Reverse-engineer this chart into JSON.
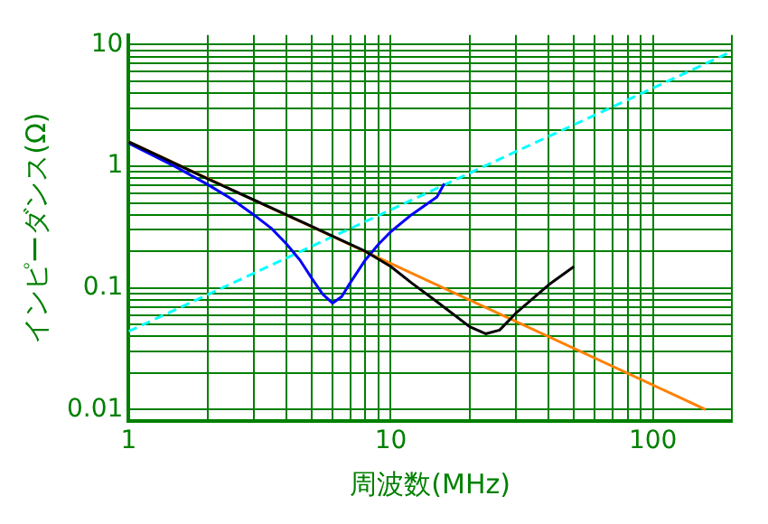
{
  "chart_data": {
    "type": "line",
    "xlabel": "周波数(MHz)",
    "ylabel": "インピーダンス(Ω)",
    "log": "xy",
    "grid": true,
    "legend": false,
    "marker": "none",
    "xlim": [
      1,
      200
    ],
    "ylim": [
      0.008,
      12
    ],
    "xticks": [
      1,
      {
        "value": 2,
        "label": null
      },
      {
        "value": 3,
        "label": null
      },
      {
        "value": 4,
        "label": null
      },
      {
        "value": 5,
        "label": null
      },
      {
        "value": 6,
        "label": null
      },
      {
        "value": 7,
        "label": null
      },
      {
        "value": 8,
        "label": null
      },
      {
        "value": 9,
        "label": null
      },
      10,
      {
        "value": 20,
        "label": null
      },
      {
        "value": 30,
        "label": null
      },
      {
        "value": 40,
        "label": null
      },
      {
        "value": 50,
        "label": null
      },
      {
        "value": 60,
        "label": null
      },
      {
        "value": 70,
        "label": null
      },
      {
        "value": 80,
        "label": null
      },
      {
        "value": 90,
        "label": null
      },
      100,
      {
        "value": 200,
        "label": null
      }
    ],
    "yticks": [
      0.01,
      {
        "value": 0.02,
        "label": null
      },
      {
        "value": 0.03,
        "label": null
      },
      {
        "value": 0.04,
        "label": null
      },
      {
        "value": 0.05,
        "label": null
      },
      {
        "value": 0.06,
        "label": null
      },
      {
        "value": 0.07,
        "label": null
      },
      {
        "value": 0.08,
        "label": null
      },
      {
        "value": 0.09,
        "label": null
      },
      0.1,
      {
        "value": 0.2,
        "label": null
      },
      {
        "value": 0.3,
        "label": null
      },
      {
        "value": 0.4,
        "label": null
      },
      {
        "value": 0.5,
        "label": null
      },
      {
        "value": 0.6,
        "label": null
      },
      {
        "value": 0.7,
        "label": null
      },
      {
        "value": 0.8,
        "label": null
      },
      {
        "value": 0.9,
        "label": null
      },
      1,
      {
        "value": 2,
        "label": null
      },
      {
        "value": 3,
        "label": null
      },
      {
        "value": 4,
        "label": null
      },
      {
        "value": 5,
        "label": null
      },
      {
        "value": 6,
        "label": null
      },
      {
        "value": 7,
        "label": null
      },
      {
        "value": 8,
        "label": null
      },
      {
        "value": 9,
        "label": null
      },
      10
    ],
    "series": [
      {
        "color": "#000000",
        "x": [
          1,
          2,
          5,
          8,
          10,
          12,
          15,
          20,
          23,
          26,
          30,
          40,
          50
        ],
        "values": [
          1.59,
          0.79,
          0.32,
          0.2,
          0.15,
          0.11,
          0.077,
          0.048,
          0.042,
          0.045,
          0.062,
          0.106,
          0.15
        ]
      },
      {
        "color": "#0000ff",
        "x": [
          1,
          1.5,
          2,
          2.5,
          3,
          3.5,
          4,
          4.5,
          5,
          5.5,
          6,
          6.5,
          7,
          8,
          9,
          10,
          12,
          15,
          16
        ],
        "values": [
          1.55,
          1,
          0.71,
          0.53,
          0.4,
          0.31,
          0.23,
          0.17,
          0.12,
          0.089,
          0.075,
          0.085,
          0.11,
          0.17,
          0.23,
          0.29,
          0.4,
          0.56,
          0.72
        ]
      },
      {
        "color": "#ff8000",
        "x": [
          1,
          159
        ],
        "values": [
          1.59,
          0.01
        ]
      },
      {
        "color": "#00ffff",
        "line_style": "dashed",
        "x": [
          1,
          200
        ],
        "values": [
          0.044,
          8.8
        ]
      }
    ]
  }
}
